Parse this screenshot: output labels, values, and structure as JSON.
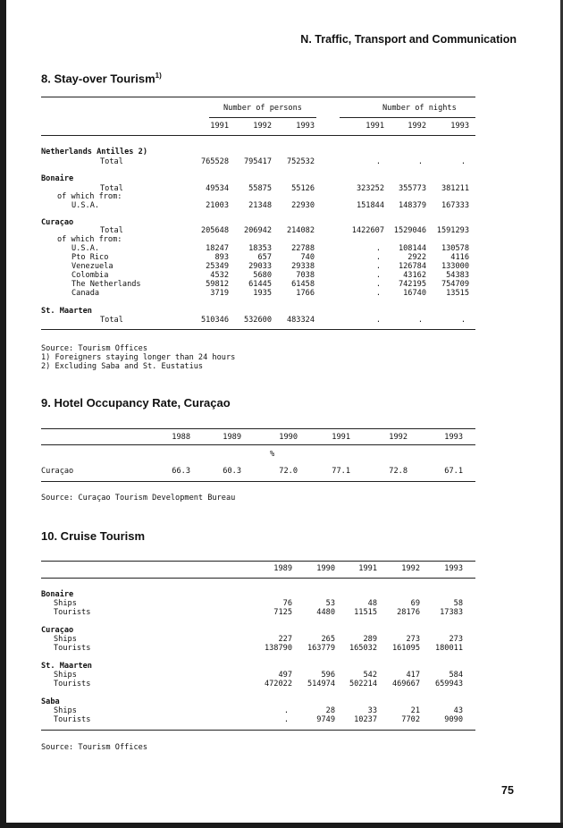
{
  "running_head": "N. Traffic, Transport and Communication",
  "page_number": "75",
  "s8": {
    "title": "8.  Stay-over Tourism",
    "title_note": "1)",
    "group_persons": "Number of persons",
    "group_nights": "Number of nights",
    "years": [
      "1991",
      "1992",
      "1993",
      "1991",
      "1992",
      "1993"
    ],
    "rows": [
      {
        "label": "Netherlands Antilles 2)",
        "kind": "group",
        "v": []
      },
      {
        "label": "Total",
        "kind": "total",
        "v": [
          "765528",
          "795417",
          "752532",
          ".",
          ".",
          "."
        ]
      },
      {
        "label": "Bonaire",
        "kind": "group",
        "v": []
      },
      {
        "label": "Total",
        "kind": "total",
        "v": [
          "49534",
          "55875",
          "55126",
          "323252",
          "355773",
          "381211"
        ]
      },
      {
        "label": "of which from:",
        "kind": "of",
        "v": []
      },
      {
        "label": "U.S.A.",
        "kind": "sub",
        "v": [
          "21003",
          "21348",
          "22930",
          "151844",
          "148379",
          "167333"
        ]
      },
      {
        "label": "Curaçao",
        "kind": "group",
        "v": []
      },
      {
        "label": "Total",
        "kind": "total",
        "v": [
          "205648",
          "206942",
          "214082",
          "1422607",
          "1529046",
          "1591293"
        ]
      },
      {
        "label": "of which from:",
        "kind": "of",
        "v": []
      },
      {
        "label": "U.S.A.",
        "kind": "sub",
        "v": [
          "18247",
          "18353",
          "22788",
          ".",
          "108144",
          "130578"
        ]
      },
      {
        "label": "Pto Rico",
        "kind": "sub",
        "v": [
          "893",
          "657",
          "740",
          ".",
          "2922",
          "4116"
        ]
      },
      {
        "label": "Venezuela",
        "kind": "sub",
        "v": [
          "25349",
          "29033",
          "29338",
          ".",
          "126784",
          "133000"
        ]
      },
      {
        "label": "Colombia",
        "kind": "sub",
        "v": [
          "4532",
          "5680",
          "7038",
          ".",
          "43162",
          "54383"
        ]
      },
      {
        "label": "The Netherlands",
        "kind": "sub",
        "v": [
          "59812",
          "61445",
          "61458",
          ".",
          "742195",
          "754709"
        ]
      },
      {
        "label": "Canada",
        "kind": "sub",
        "v": [
          "3719",
          "1935",
          "1766",
          ".",
          "16740",
          "13515"
        ]
      },
      {
        "label": "St. Maarten",
        "kind": "group",
        "v": []
      },
      {
        "label": "Total",
        "kind": "total",
        "v": [
          "510346",
          "532600",
          "483324",
          ".",
          ".",
          "."
        ]
      }
    ],
    "notes": [
      "Source: Tourism Offices",
      "1) Foreigners staying longer than 24 hours",
      "2) Excluding Saba and St. Eustatius"
    ]
  },
  "s9": {
    "title": "9.  Hotel Occupancy Rate, Curaçao",
    "years": [
      "1988",
      "1989",
      "1990",
      "1991",
      "1992",
      "1993"
    ],
    "unit": "%",
    "row": {
      "label": "Curaçao",
      "v": [
        "66.3",
        "60.3",
        "72.0",
        "77.1",
        "72.8",
        "67.1"
      ]
    },
    "source": "Source: Curaçao Tourism Development Bureau"
  },
  "s10": {
    "title": "10. Cruise Tourism",
    "years": [
      "1989",
      "1990",
      "1991",
      "1992",
      "1993"
    ],
    "rows": [
      {
        "label": "Bonaire",
        "kind": "group",
        "v": []
      },
      {
        "label": "Ships",
        "kind": "item",
        "v": [
          "76",
          "53",
          "48",
          "69",
          "58"
        ]
      },
      {
        "label": "Tourists",
        "kind": "item",
        "v": [
          "7125",
          "4480",
          "11515",
          "28176",
          "17383"
        ]
      },
      {
        "label": "Curaçao",
        "kind": "group",
        "v": []
      },
      {
        "label": "Ships",
        "kind": "item",
        "v": [
          "227",
          "265",
          "289",
          "273",
          "273"
        ]
      },
      {
        "label": "Tourists",
        "kind": "item",
        "v": [
          "138790",
          "163779",
          "165032",
          "161095",
          "180011"
        ]
      },
      {
        "label": "St. Maarten",
        "kind": "group",
        "v": []
      },
      {
        "label": "Ships",
        "kind": "item",
        "v": [
          "497",
          "596",
          "542",
          "417",
          "584"
        ]
      },
      {
        "label": "Tourists",
        "kind": "item",
        "v": [
          "472022",
          "514974",
          "502214",
          "469667",
          "659943"
        ]
      },
      {
        "label": "Saba",
        "kind": "group",
        "v": []
      },
      {
        "label": "Ships",
        "kind": "item",
        "v": [
          ".",
          "28",
          "33",
          "21",
          "43"
        ]
      },
      {
        "label": "Tourists",
        "kind": "item",
        "v": [
          ".",
          "9749",
          "10237",
          "7702",
          "9090"
        ]
      }
    ],
    "source": "Source: Tourism Offices"
  }
}
